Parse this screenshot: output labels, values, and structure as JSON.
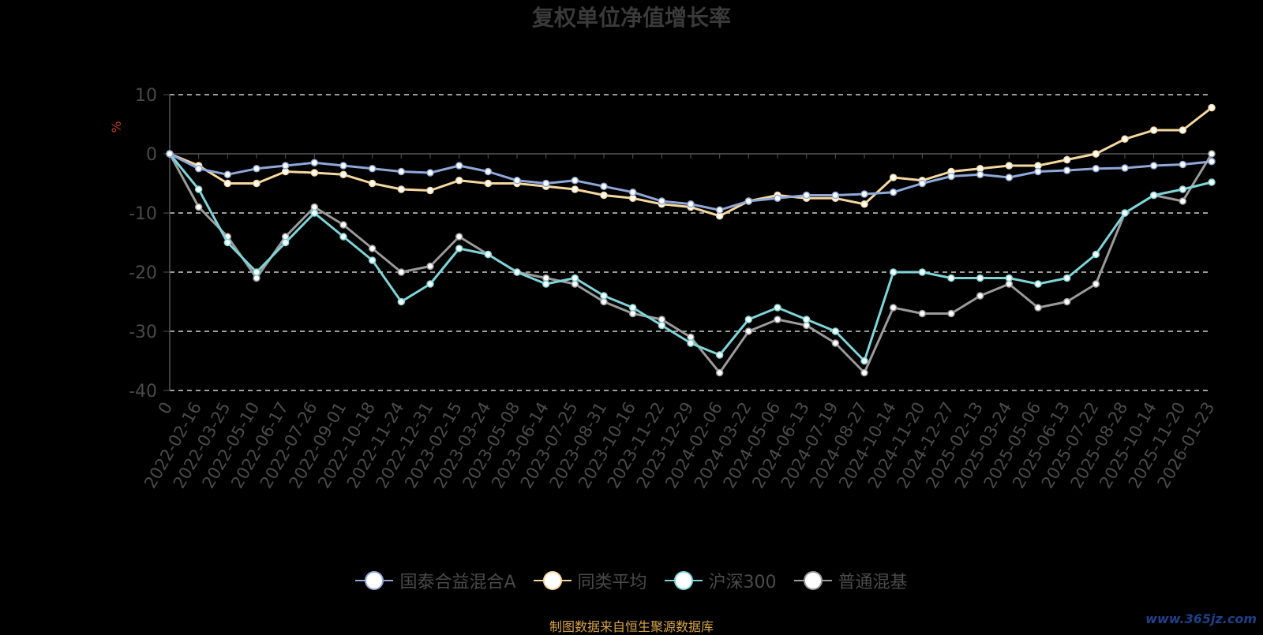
{
  "chart_data": {
    "type": "line",
    "title": "复权单位净值增长率",
    "ylabel": "%",
    "ylim": [
      -40,
      10
    ],
    "yticks": [
      -40,
      -30,
      -20,
      -10,
      0,
      10
    ],
    "grid": true,
    "legend_position": "bottom",
    "x_tick_labels": [
      "0",
      "2022-02-16",
      "2022-03-25",
      "2022-05-10",
      "2022-06-17",
      "2022-07-26",
      "2022-09-01",
      "2022-10-18",
      "2022-11-24",
      "2022-12-31",
      "2023-02-15",
      "2023-03-24",
      "2023-05-08",
      "2023-06-14",
      "2023-07-25",
      "2023-08-31",
      "2023-10-16",
      "2023-11-22",
      "2023-12-29",
      "2024-02-06",
      "2024-03-22",
      "2024-05-06",
      "2024-06-13",
      "2024-07-19",
      "2024-08-27",
      "2024-10-14",
      "2024-11-20",
      "2024-12-27",
      "2025-02-13",
      "2025-03-24",
      "2025-05-06",
      "2025-06-13",
      "2025-07-22",
      "2025-08-28",
      "2025-10-14",
      "2025-11-20",
      "2026-01-23"
    ],
    "series": [
      {
        "name": "国泰合益混合A",
        "color": "#8fa8d8",
        "values": [
          0,
          -2.5,
          -3.5,
          -2.5,
          -2,
          -1.5,
          -2,
          -2.5,
          -3,
          -3.2,
          -2,
          -3,
          -4.5,
          -5,
          -4.5,
          -5.5,
          -6.5,
          -8,
          -8.5,
          -9.5,
          -8,
          -7.5,
          -7,
          -7,
          -6.8,
          -6.5,
          -5,
          -3.8,
          -3.5,
          -4,
          -3,
          -2.8,
          -2.5,
          -2.4,
          -2,
          -1.8,
          -1.3
        ]
      },
      {
        "name": "同类平均",
        "color": "#f5d8a0",
        "values": [
          0,
          -2,
          -5,
          -5,
          -3,
          -3.2,
          -3.5,
          -5,
          -6,
          -6.2,
          -4.5,
          -5,
          -5,
          -5.5,
          -6,
          -7,
          -7.5,
          -8.5,
          -9,
          -10.5,
          -8,
          -7,
          -7.5,
          -7.5,
          -8.5,
          -4,
          -4.5,
          -3,
          -2.5,
          -2,
          -2,
          -1,
          0,
          2.5,
          4,
          4,
          7.8
        ]
      },
      {
        "name": "沪深300",
        "color": "#7fd4d8",
        "values": [
          0,
          -6,
          -15,
          -20,
          -15,
          -10,
          -14,
          -18,
          -25,
          -22,
          -16,
          -17,
          -20,
          -22,
          -21,
          -24,
          -26,
          -29,
          -32,
          -34,
          -28,
          -26,
          -28,
          -30,
          -35,
          -20,
          -20,
          -21,
          -21,
          -21,
          -22,
          -21,
          -17,
          -10,
          -7,
          -6,
          -4.8
        ]
      },
      {
        "name": "普通混基",
        "color": "#9a9a9a",
        "values": [
          0,
          -9,
          -14,
          -21,
          -14,
          -9,
          -12,
          -16,
          -20,
          -19,
          -14,
          -17,
          -20,
          -21,
          -22,
          -25,
          -27,
          -28,
          -31,
          -37,
          -30,
          -28,
          -29,
          -32,
          -37,
          -26,
          -27,
          -27,
          -24,
          -22,
          -26,
          -25,
          -22,
          -10,
          -7,
          -8,
          0
        ]
      }
    ]
  },
  "footer": {
    "credit": "制图数据来自恒生聚源数据库",
    "watermark": "www.365jz.com"
  }
}
